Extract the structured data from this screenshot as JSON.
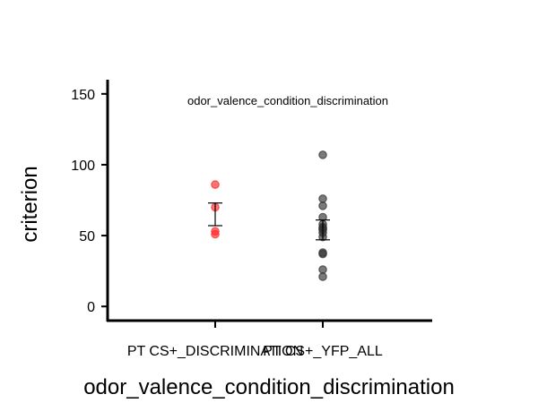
{
  "chart_data": {
    "type": "scatter",
    "title": "",
    "annotation": "odor_valence_condition_discrimination",
    "xlabel": "odor_valence_condition_discrimination",
    "ylabel": "criterion",
    "ylim": [
      -10,
      160
    ],
    "yticks": [
      0,
      50,
      100,
      150
    ],
    "grid": false,
    "legend": "none",
    "categories": [
      "PT CS+_DISCRIMINATION",
      "PT CS+_YFP_ALL"
    ],
    "series": [
      {
        "category": "PT CS+_DISCRIMINATION",
        "color": "#ff2a2a",
        "values": [
          86,
          70,
          53,
          51
        ],
        "mean": 65,
        "error": [
          57,
          73
        ]
      },
      {
        "category": "PT CS+_YFP_ALL",
        "color": "#333333",
        "values": [
          107,
          76,
          71,
          63,
          58,
          56,
          55,
          54,
          52,
          49,
          38,
          37,
          26,
          21
        ],
        "mean": 54,
        "error": [
          47,
          61
        ]
      }
    ]
  }
}
